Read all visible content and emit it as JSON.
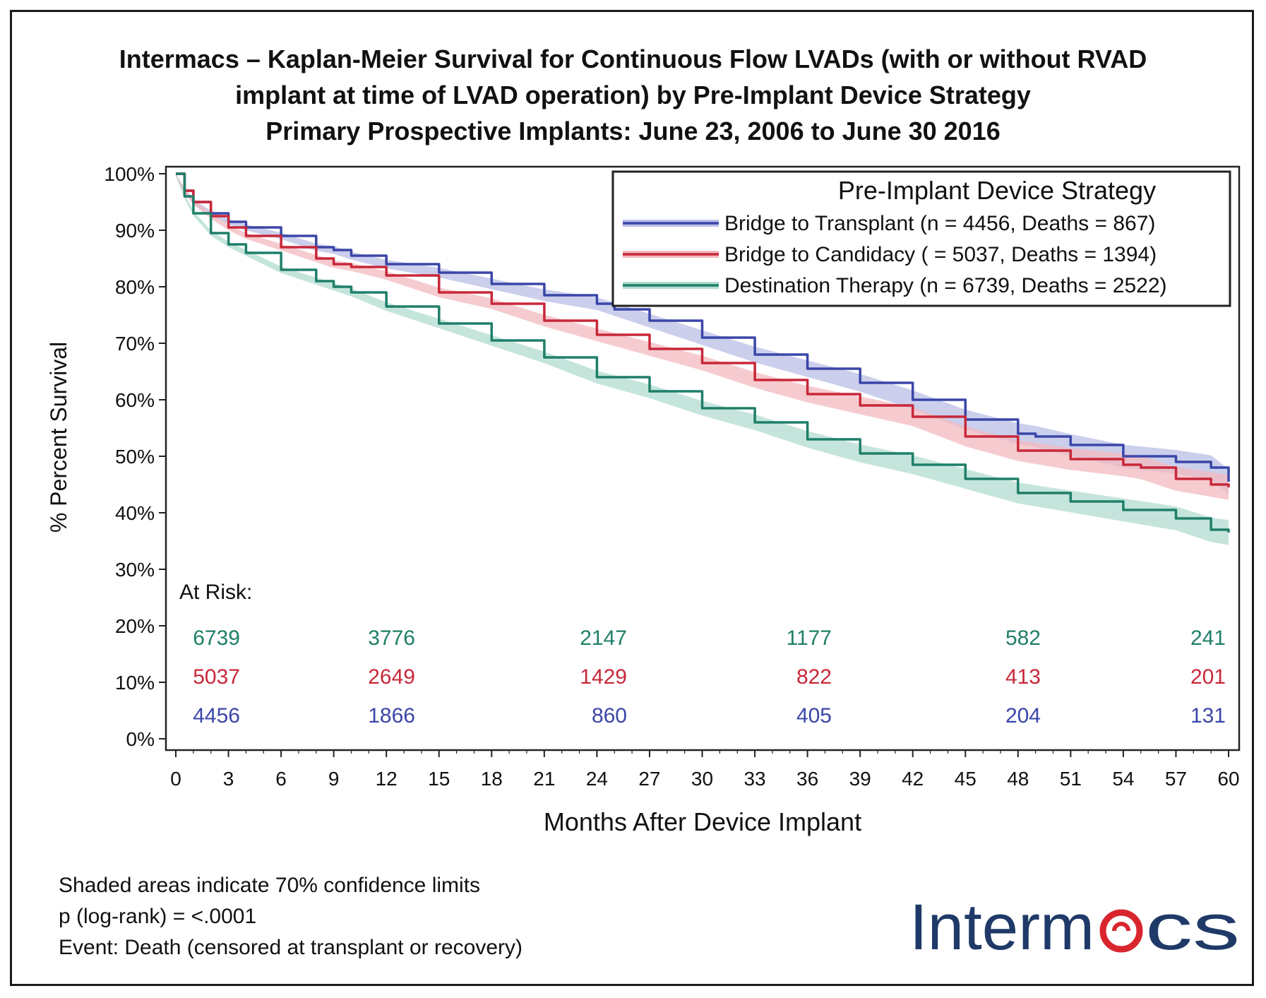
{
  "chart_data": {
    "type": "line",
    "title_lines": [
      "Intermacs – Kaplan-Meier Survival for Continuous Flow LVADs (with or without RVAD",
      "implant at time of LVAD operation) by Pre-Implant Device Strategy",
      "Primary Prospective Implants: June 23, 2006 to June 30 2016"
    ],
    "xlabel": "Months After Device Implant",
    "ylabel": "% Percent Survival",
    "xlim": [
      0,
      60
    ],
    "ylim": [
      0,
      100
    ],
    "x_ticks": [
      0,
      3,
      6,
      9,
      12,
      15,
      18,
      21,
      24,
      27,
      30,
      33,
      36,
      39,
      42,
      45,
      48,
      51,
      54,
      57,
      60
    ],
    "y_ticks": [
      0,
      10,
      20,
      30,
      40,
      50,
      60,
      70,
      80,
      90,
      100
    ],
    "y_tick_labels": [
      "0%",
      "10%",
      "20%",
      "30%",
      "40%",
      "50%",
      "60%",
      "70%",
      "80%",
      "90%",
      "100%"
    ],
    "grid": false,
    "legend": {
      "title": "Pre-Implant Device Strategy",
      "placement": "top-right"
    },
    "series": [
      {
        "name": "Bridge to Transplant (n = 4456, Deaths = 867)",
        "color": "#3b46a8",
        "band_color": "#b9bfe6",
        "x": [
          0,
          0.5,
          1,
          2,
          3,
          4,
          6,
          8,
          9,
          10,
          12,
          15,
          18,
          21,
          24,
          25,
          27,
          30,
          33,
          36,
          39,
          42,
          45,
          48,
          49,
          51,
          54,
          57,
          59,
          60
        ],
        "y": [
          100,
          97,
          95,
          93,
          91.5,
          90.5,
          89,
          87,
          86.5,
          85.5,
          84,
          82.5,
          80.5,
          78.5,
          77,
          76,
          74,
          71,
          68,
          65.5,
          63,
          60,
          56.5,
          54,
          53.5,
          52,
          50,
          49,
          48,
          45.5
        ]
      },
      {
        "name": "Bridge to Candidacy ( = 5037, Deaths = 1394)",
        "color": "#c8283a",
        "band_color": "#f3b9bf",
        "x": [
          0,
          0.5,
          1,
          2,
          3,
          4,
          6,
          8,
          9,
          10,
          12,
          15,
          18,
          21,
          24,
          27,
          30,
          33,
          36,
          39,
          42,
          45,
          48,
          51,
          54,
          55,
          57,
          59,
          60
        ],
        "y": [
          100,
          97,
          95,
          92.5,
          90.5,
          89,
          87,
          85,
          84,
          83.5,
          82,
          79,
          77,
          74,
          71.5,
          69,
          66.5,
          63.5,
          61,
          59,
          57,
          53.5,
          51,
          49.5,
          48.5,
          48,
          46,
          45,
          44.5
        ]
      },
      {
        "name": "Destination Therapy (n = 6739, Deaths = 2522)",
        "color": "#1f7f68",
        "band_color": "#b2dcd0",
        "x": [
          0,
          0.5,
          1,
          2,
          3,
          4,
          6,
          8,
          9,
          10,
          12,
          15,
          18,
          21,
          24,
          27,
          30,
          33,
          36,
          39,
          42,
          45,
          48,
          51,
          54,
          57,
          59,
          60
        ],
        "y": [
          100,
          96,
          93,
          89.5,
          87.5,
          86,
          83,
          81,
          80,
          79,
          76.5,
          73.5,
          70.5,
          67.5,
          64,
          61.5,
          58.5,
          56,
          53,
          50.5,
          48.5,
          46,
          43.5,
          42,
          40.5,
          39,
          37,
          36.5
        ]
      }
    ],
    "at_risk": {
      "label": "At Risk:",
      "rows": [
        {
          "series": "Destination Therapy",
          "color": "#1f7f68",
          "values": [
            "6739",
            "3776",
            "2147",
            "1177",
            "582",
            "241"
          ]
        },
        {
          "series": "Bridge to Candidacy",
          "color": "#c8283a",
          "values": [
            "5037",
            "2649",
            "1429",
            "822",
            "413",
            "201"
          ]
        },
        {
          "series": "Bridge to Transplant",
          "color": "#3b46a8",
          "values": [
            "4456",
            "1866",
            "860",
            "405",
            "204",
            "131"
          ]
        }
      ]
    }
  },
  "footnotes": [
    "Shaded areas indicate 70% confidence limits",
    "p (log-rank) = <.0001",
    "Event: Death (censored at transplant or recovery)"
  ],
  "logo": {
    "text": "Intermacs",
    "color": "#1f3a68",
    "accent_color": "#d8252e"
  }
}
